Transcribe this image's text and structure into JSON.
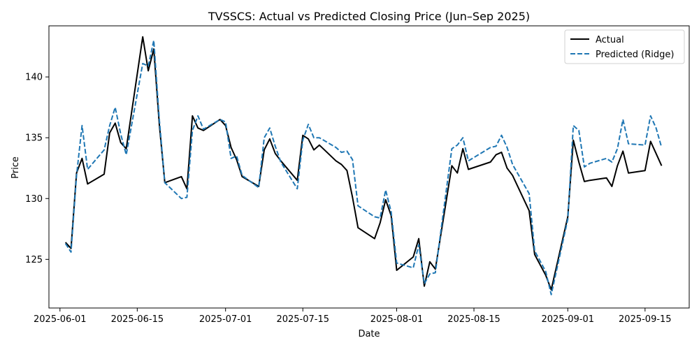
{
  "chart_data": {
    "type": "line",
    "title": "TVSSCS: Actual vs Predicted Closing Price (Jun–Sep 2025)",
    "xlabel": "Date",
    "ylabel": "Price",
    "x_axis_type": "date",
    "xlim": [
      "2025-05-30",
      "2025-09-23"
    ],
    "ylim": [
      121.0,
      144.2
    ],
    "x_ticks": [
      "2025-06-01",
      "2025-06-15",
      "2025-07-01",
      "2025-07-15",
      "2025-08-01",
      "2025-08-15",
      "2025-09-01",
      "2025-09-15"
    ],
    "y_ticks": [
      125,
      130,
      135,
      140
    ],
    "grid": false,
    "legend_position": "top-right",
    "series": [
      {
        "name": "Actual",
        "color": "#000000",
        "line_style": "solid",
        "x": [
          "2025-06-02",
          "2025-06-03",
          "2025-06-04",
          "2025-06-05",
          "2025-06-06",
          "2025-06-09",
          "2025-06-10",
          "2025-06-11",
          "2025-06-12",
          "2025-06-13",
          "2025-06-16",
          "2025-06-17",
          "2025-06-18",
          "2025-06-19",
          "2025-06-20",
          "2025-06-23",
          "2025-06-24",
          "2025-06-25",
          "2025-06-26",
          "2025-06-27",
          "2025-06-30",
          "2025-07-01",
          "2025-07-02",
          "2025-07-03",
          "2025-07-04",
          "2025-07-07",
          "2025-07-08",
          "2025-07-09",
          "2025-07-10",
          "2025-07-11",
          "2025-07-14",
          "2025-07-15",
          "2025-07-16",
          "2025-07-17",
          "2025-07-18",
          "2025-07-21",
          "2025-07-22",
          "2025-07-23",
          "2025-07-24",
          "2025-07-25",
          "2025-07-28",
          "2025-07-29",
          "2025-07-30",
          "2025-07-31",
          "2025-08-01",
          "2025-08-04",
          "2025-08-05",
          "2025-08-06",
          "2025-08-07",
          "2025-08-08",
          "2025-08-11",
          "2025-08-12",
          "2025-08-13",
          "2025-08-14",
          "2025-08-18",
          "2025-08-19",
          "2025-08-20",
          "2025-08-21",
          "2025-08-22",
          "2025-08-25",
          "2025-08-26",
          "2025-08-28",
          "2025-08-29",
          "2025-09-01",
          "2025-09-02",
          "2025-09-03",
          "2025-09-04",
          "2025-09-05",
          "2025-09-08",
          "2025-09-09",
          "2025-09-10",
          "2025-09-11",
          "2025-09-12",
          "2025-09-15",
          "2025-09-16",
          "2025-09-17",
          "2025-09-18"
        ],
        "values": [
          126.4,
          125.9,
          132.1,
          133.3,
          131.2,
          132.0,
          135.4,
          136.2,
          134.6,
          134.1,
          143.3,
          140.5,
          142.3,
          136.1,
          131.3,
          131.8,
          130.8,
          136.8,
          135.8,
          135.6,
          136.5,
          136.0,
          134.2,
          133.2,
          131.8,
          131.0,
          134.0,
          134.9,
          133.7,
          133.1,
          131.5,
          135.2,
          134.9,
          134.0,
          134.4,
          133.1,
          132.8,
          132.3,
          130.1,
          127.6,
          126.7,
          128.0,
          129.9,
          128.6,
          124.1,
          125.2,
          126.7,
          122.8,
          124.8,
          124.2,
          132.7,
          132.1,
          134.1,
          132.4,
          133.0,
          133.6,
          133.8,
          132.5,
          131.9,
          129.0,
          125.4,
          123.7,
          122.5,
          128.5,
          134.8,
          133.0,
          131.4,
          131.5,
          131.7,
          131.0,
          132.7,
          133.9,
          132.1,
          132.3,
          134.7,
          133.7,
          132.7
        ]
      },
      {
        "name": "Predicted (Ridge)",
        "color": "#1f77b4",
        "line_style": "dashed",
        "x": [
          "2025-06-02",
          "2025-06-03",
          "2025-06-04",
          "2025-06-05",
          "2025-06-06",
          "2025-06-09",
          "2025-06-10",
          "2025-06-11",
          "2025-06-12",
          "2025-06-13",
          "2025-06-16",
          "2025-06-17",
          "2025-06-18",
          "2025-06-19",
          "2025-06-20",
          "2025-06-23",
          "2025-06-24",
          "2025-06-25",
          "2025-06-26",
          "2025-06-27",
          "2025-06-30",
          "2025-07-01",
          "2025-07-02",
          "2025-07-03",
          "2025-07-04",
          "2025-07-07",
          "2025-07-08",
          "2025-07-09",
          "2025-07-10",
          "2025-07-11",
          "2025-07-14",
          "2025-07-15",
          "2025-07-16",
          "2025-07-17",
          "2025-07-18",
          "2025-07-21",
          "2025-07-22",
          "2025-07-23",
          "2025-07-24",
          "2025-07-25",
          "2025-07-28",
          "2025-07-29",
          "2025-07-30",
          "2025-07-31",
          "2025-08-01",
          "2025-08-04",
          "2025-08-05",
          "2025-08-06",
          "2025-08-07",
          "2025-08-08",
          "2025-08-11",
          "2025-08-12",
          "2025-08-13",
          "2025-08-14",
          "2025-08-18",
          "2025-08-19",
          "2025-08-20",
          "2025-08-21",
          "2025-08-22",
          "2025-08-25",
          "2025-08-26",
          "2025-08-28",
          "2025-08-29",
          "2025-09-01",
          "2025-09-02",
          "2025-09-03",
          "2025-09-04",
          "2025-09-05",
          "2025-09-08",
          "2025-09-09",
          "2025-09-10",
          "2025-09-11",
          "2025-09-12",
          "2025-09-15",
          "2025-09-16",
          "2025-09-17",
          "2025-09-18"
        ],
        "values": [
          126.3,
          125.6,
          131.9,
          136.0,
          132.4,
          134.0,
          136.0,
          137.5,
          135.3,
          133.6,
          141.1,
          140.9,
          143.0,
          136.5,
          131.3,
          130.0,
          130.1,
          135.6,
          136.8,
          135.7,
          136.5,
          136.3,
          133.3,
          133.5,
          131.9,
          130.9,
          135.0,
          135.8,
          134.3,
          133.0,
          130.8,
          134.8,
          136.1,
          135.0,
          135.0,
          134.2,
          133.8,
          133.9,
          133.2,
          129.4,
          128.5,
          128.4,
          130.7,
          128.9,
          124.7,
          124.3,
          126.2,
          123.0,
          123.8,
          123.9,
          134.1,
          134.4,
          135.0,
          133.1,
          134.2,
          134.3,
          135.2,
          134.2,
          132.8,
          130.4,
          125.7,
          124.0,
          122.1,
          128.3,
          136.0,
          135.6,
          132.6,
          132.9,
          133.3,
          133.0,
          134.1,
          136.5,
          134.5,
          134.4,
          136.8,
          135.8,
          134.2
        ]
      }
    ]
  }
}
